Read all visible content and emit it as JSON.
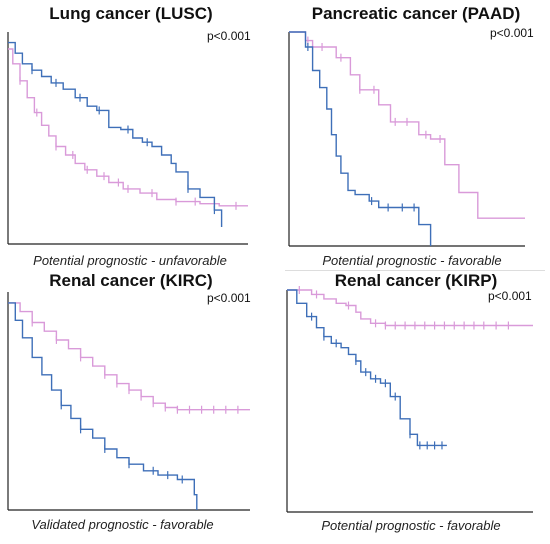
{
  "colors": {
    "pink": "#d99ad9",
    "blue": "#3e6fb8",
    "axis": "#222222"
  },
  "panels": [
    {
      "title": "Lung cancer (LUSC)",
      "p_value": "p<0.001",
      "caption": "Potential prognostic - unfavorable"
    },
    {
      "title": "Pancreatic cancer (PAAD)",
      "p_value": "p<0.001",
      "caption": "Potential prognostic - favorable"
    },
    {
      "title": "Renal cancer (KIRC)",
      "p_value": "p<0.001",
      "caption": "Validated prognostic - favorable"
    },
    {
      "title": "Renal cancer (KIRP)",
      "p_value": "p<0.001",
      "caption": "Potential prognostic - favorable"
    }
  ],
  "chart_data": [
    {
      "type": "line",
      "title": "Lung cancer (LUSC)",
      "annotation": "p<0.001",
      "xlim": [
        0,
        1
      ],
      "ylim": [
        0,
        1
      ],
      "series": [
        {
          "color": "#d99ad9",
          "x": [
            0,
            0.02,
            0.05,
            0.08,
            0.11,
            0.14,
            0.17,
            0.2,
            0.24,
            0.28,
            0.32,
            0.37,
            0.42,
            0.48,
            0.55,
            0.62,
            0.7,
            0.8,
            0.88,
            1.0
          ],
          "y": [
            0.92,
            0.85,
            0.77,
            0.69,
            0.62,
            0.56,
            0.51,
            0.46,
            0.42,
            0.38,
            0.35,
            0.32,
            0.29,
            0.26,
            0.24,
            0.21,
            0.2,
            0.19,
            0.18,
            0.18
          ],
          "censor_x": [
            0.05,
            0.12,
            0.2,
            0.27,
            0.33,
            0.4,
            0.46,
            0.5,
            0.6,
            0.7,
            0.78,
            0.86,
            0.95
          ]
        },
        {
          "color": "#3e6fb8",
          "x": [
            0,
            0.03,
            0.06,
            0.1,
            0.14,
            0.18,
            0.23,
            0.28,
            0.33,
            0.37,
            0.42,
            0.47,
            0.52,
            0.56,
            0.6,
            0.64,
            0.68,
            0.7,
            0.75,
            0.8,
            0.86,
            0.89
          ],
          "y": [
            0.95,
            0.9,
            0.85,
            0.82,
            0.79,
            0.76,
            0.73,
            0.69,
            0.65,
            0.63,
            0.55,
            0.54,
            0.5,
            0.48,
            0.46,
            0.42,
            0.38,
            0.34,
            0.26,
            0.22,
            0.16,
            0.08
          ],
          "censor_x": [
            0.1,
            0.2,
            0.3,
            0.38,
            0.5,
            0.58,
            0.75,
            0.86
          ]
        }
      ]
    },
    {
      "type": "line",
      "title": "Pancreatic cancer (PAAD)",
      "annotation": "p<0.001",
      "xlim": [
        0,
        1
      ],
      "ylim": [
        0,
        1
      ],
      "series": [
        {
          "color": "#d99ad9",
          "x": [
            0,
            0.07,
            0.1,
            0.2,
            0.26,
            0.3,
            0.38,
            0.43,
            0.55,
            0.6,
            0.66,
            0.72,
            0.8,
            1.0
          ],
          "y": [
            1.0,
            0.96,
            0.93,
            0.88,
            0.8,
            0.73,
            0.66,
            0.58,
            0.52,
            0.5,
            0.38,
            0.25,
            0.13,
            0.13
          ],
          "censor_x": [
            0.08,
            0.14,
            0.22,
            0.3,
            0.36,
            0.45,
            0.5,
            0.58,
            0.64
          ]
        },
        {
          "color": "#3e6fb8",
          "x": [
            0,
            0.07,
            0.1,
            0.13,
            0.16,
            0.18,
            0.2,
            0.22,
            0.25,
            0.28,
            0.34,
            0.38,
            0.44,
            0.55,
            0.6
          ],
          "y": [
            1.0,
            0.93,
            0.82,
            0.74,
            0.64,
            0.52,
            0.42,
            0.34,
            0.26,
            0.24,
            0.21,
            0.18,
            0.18,
            0.1,
            0.0
          ],
          "censor_x": [
            0.08,
            0.35,
            0.42,
            0.48,
            0.53
          ]
        }
      ]
    },
    {
      "type": "line",
      "title": "Renal cancer (KIRC)",
      "annotation": "p<0.001",
      "xlim": [
        0,
        1
      ],
      "ylim": [
        0,
        1
      ],
      "series": [
        {
          "color": "#d99ad9",
          "x": [
            0,
            0.05,
            0.1,
            0.15,
            0.2,
            0.25,
            0.3,
            0.35,
            0.4,
            0.45,
            0.5,
            0.55,
            0.6,
            0.65,
            0.7,
            0.8,
            1.0
          ],
          "y": [
            0.95,
            0.91,
            0.86,
            0.82,
            0.78,
            0.74,
            0.7,
            0.66,
            0.62,
            0.58,
            0.55,
            0.52,
            0.49,
            0.47,
            0.46,
            0.46,
            0.46
          ],
          "censor_x": [
            0.1,
            0.2,
            0.3,
            0.4,
            0.45,
            0.5,
            0.55,
            0.6,
            0.65,
            0.7,
            0.75,
            0.8,
            0.85,
            0.9,
            0.95
          ]
        },
        {
          "color": "#3e6fb8",
          "x": [
            0,
            0.03,
            0.06,
            0.1,
            0.14,
            0.18,
            0.22,
            0.26,
            0.3,
            0.35,
            0.4,
            0.45,
            0.5,
            0.56,
            0.62,
            0.7,
            0.75,
            0.77,
            0.78
          ],
          "y": [
            0.95,
            0.87,
            0.79,
            0.7,
            0.62,
            0.55,
            0.48,
            0.42,
            0.37,
            0.33,
            0.28,
            0.24,
            0.21,
            0.18,
            0.16,
            0.14,
            0.14,
            0.07,
            0.0
          ],
          "censor_x": [
            0.22,
            0.3,
            0.4,
            0.5,
            0.6,
            0.66,
            0.72
          ]
        }
      ]
    },
    {
      "type": "line",
      "title": "Renal cancer (KIRP)",
      "annotation": "p<0.001",
      "xlim": [
        0,
        1
      ],
      "ylim": [
        0,
        1
      ],
      "series": [
        {
          "color": "#d99ad9",
          "x": [
            0,
            0.1,
            0.15,
            0.2,
            0.24,
            0.28,
            0.3,
            0.34,
            0.4,
            0.5,
            0.7,
            1.0
          ],
          "y": [
            1.0,
            0.98,
            0.96,
            0.94,
            0.93,
            0.9,
            0.87,
            0.85,
            0.84,
            0.84,
            0.84,
            0.84
          ],
          "censor_x": [
            0.05,
            0.12,
            0.25,
            0.36,
            0.4,
            0.44,
            0.48,
            0.52,
            0.56,
            0.6,
            0.64,
            0.68,
            0.72,
            0.76,
            0.8,
            0.85,
            0.9
          ]
        },
        {
          "color": "#3e6fb8",
          "x": [
            0,
            0.04,
            0.08,
            0.12,
            0.15,
            0.18,
            0.22,
            0.25,
            0.28,
            0.3,
            0.34,
            0.38,
            0.42,
            0.46,
            0.5,
            0.53,
            0.6,
            0.65
          ],
          "y": [
            1.0,
            0.94,
            0.88,
            0.83,
            0.79,
            0.76,
            0.74,
            0.71,
            0.68,
            0.63,
            0.6,
            0.58,
            0.52,
            0.42,
            0.35,
            0.3,
            0.3,
            0.3
          ],
          "censor_x": [
            0.1,
            0.15,
            0.2,
            0.28,
            0.32,
            0.36,
            0.4,
            0.44,
            0.5,
            0.54,
            0.57,
            0.6,
            0.63
          ]
        }
      ]
    }
  ]
}
